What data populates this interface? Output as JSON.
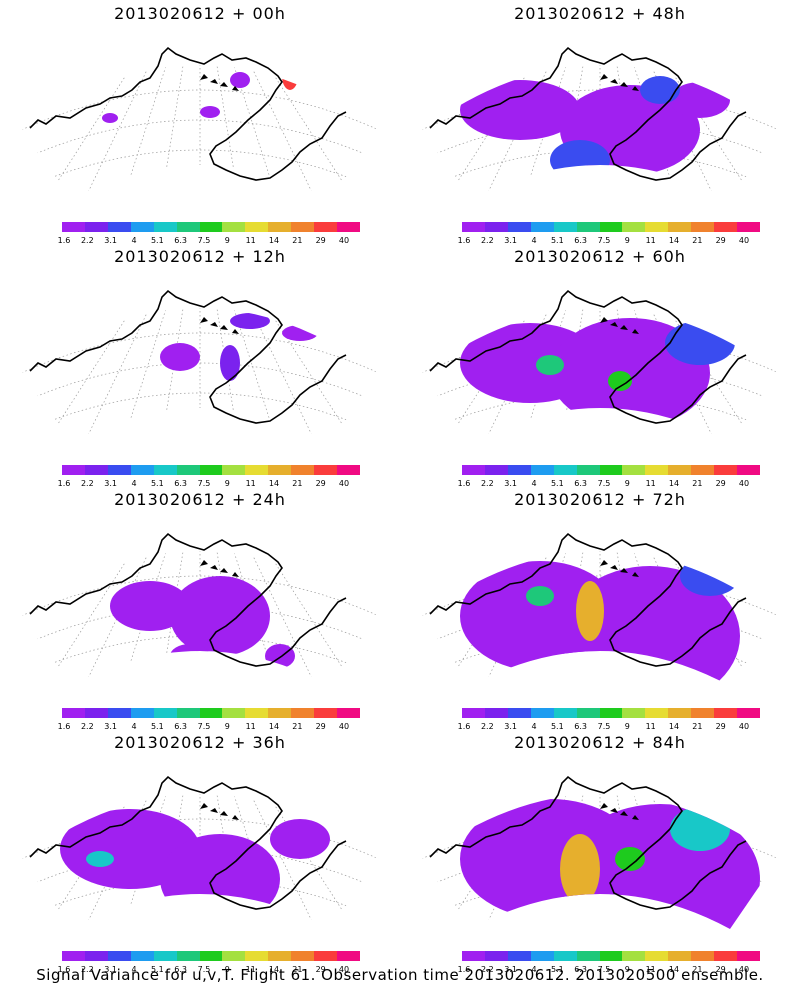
{
  "panels": [
    {
      "title": "2013020612 + 00h"
    },
    {
      "title": "2013020612 + 48h"
    },
    {
      "title": "2013020612 + 12h"
    },
    {
      "title": "2013020612 + 60h"
    },
    {
      "title": "2013020612 + 24h"
    },
    {
      "title": "2013020612 + 72h"
    },
    {
      "title": "2013020612 + 36h"
    },
    {
      "title": "2013020612 + 84h"
    }
  ],
  "colorbar": {
    "colors": [
      "#a020f0",
      "#7b22ee",
      "#3a4cf0",
      "#1e9cf0",
      "#18c8c8",
      "#1ec87a",
      "#1ecb1e",
      "#a4e040",
      "#e6dc32",
      "#e6af2d",
      "#f0822d",
      "#fa3c3c",
      "#f00a82"
    ],
    "labels": [
      "1.6",
      "2.2",
      "3.1",
      "4",
      "5.1",
      "6.3",
      "7.5",
      "9",
      "11",
      "14",
      "21",
      "29",
      "40"
    ]
  },
  "footer": "Signal Variance for u,v,T. Flight 61. Observation time 2013020612. 2013020500 ensemble."
}
